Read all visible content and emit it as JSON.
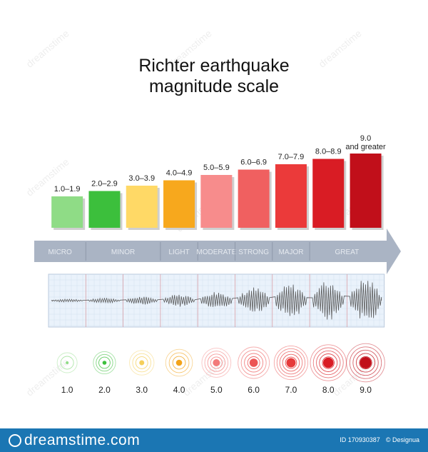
{
  "title": {
    "line1": "Richter earthquake",
    "line2": "magnitude scale"
  },
  "watermark": "dreamstime",
  "chart_data": {
    "type": "bar",
    "categories": [
      "1.0–1.9",
      "2.0–2.9",
      "3.0–3.9",
      "4.0–4.9",
      "5.0–5.9",
      "6.0–6.9",
      "7.0–7.9",
      "8.0–8.9",
      "9.0 and greater"
    ],
    "values": [
      1,
      2,
      3,
      4,
      5,
      6,
      7,
      8,
      9
    ],
    "colors": [
      "#8fdc86",
      "#3cbf3c",
      "#ffd966",
      "#f7a81d",
      "#f78c8c",
      "#f06060",
      "#eb3a3a",
      "#d91c24",
      "#c10f1a"
    ]
  },
  "scale": {
    "bands": [
      {
        "label": "MICRO",
        "span": 1
      },
      {
        "label": "MINOR",
        "span": 2
      },
      {
        "label": "LIGHT",
        "span": 1
      },
      {
        "label": "MODERATE",
        "span": 1
      },
      {
        "label": "STRONG",
        "span": 1
      },
      {
        "label": "MAJOR",
        "span": 1
      },
      {
        "label": "GREAT",
        "span": 2
      }
    ],
    "arrow_color": "#aab4c4",
    "label_color": "#e6eaf0"
  },
  "seismograph": {
    "amplitudes": [
      0.07,
      0.12,
      0.18,
      0.28,
      0.42,
      0.6,
      0.75,
      0.9,
      1.0
    ]
  },
  "ripples": {
    "labels": [
      "1.0",
      "2.0",
      "3.0",
      "4.0",
      "5.0",
      "6.0",
      "7.0",
      "8.0",
      "9.0"
    ],
    "colors": [
      "#8fdc86",
      "#3cbf3c",
      "#f5cf5a",
      "#f2a31b",
      "#f27a7a",
      "#ec5555",
      "#e63a3a",
      "#d91c24",
      "#c10f1a"
    ],
    "rings": [
      2,
      3,
      3,
      3,
      4,
      4,
      5,
      5,
      5
    ]
  },
  "footer": {
    "logo": "dreamstime.com",
    "id_text": "ID 170930387",
    "credit": "© Designua"
  }
}
